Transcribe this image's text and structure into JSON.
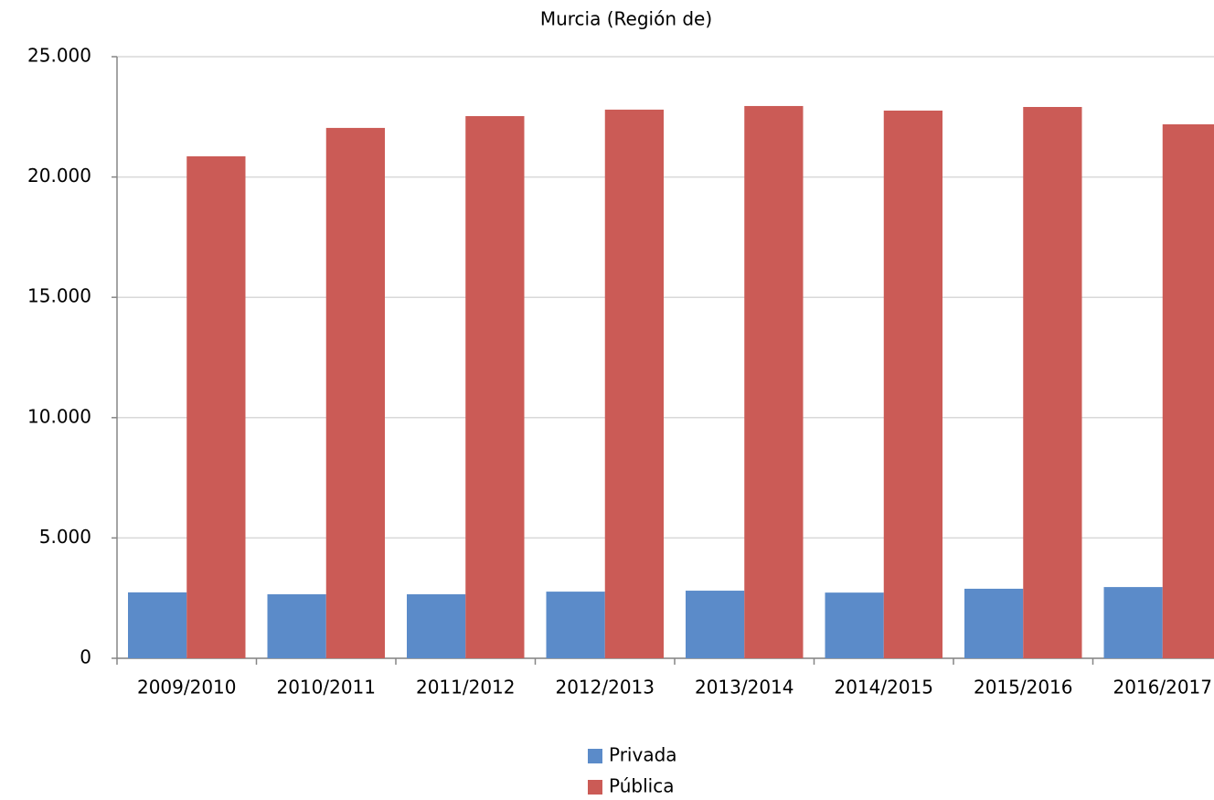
{
  "chart_data": {
    "type": "bar",
    "title": "Murcia (Región de)",
    "categories": [
      "2009/2010",
      "2010/2011",
      "2011/2012",
      "2012/2013",
      "2013/2014",
      "2014/2015",
      "2015/2016",
      "2016/2017"
    ],
    "series": [
      {
        "name": "Privada",
        "color": "#5b8bc9",
        "values": [
          2740,
          2660,
          2660,
          2770,
          2810,
          2730,
          2890,
          2960
        ]
      },
      {
        "name": "Pública",
        "color": "#cb5b56",
        "values": [
          20860,
          22040,
          22530,
          22800,
          22950,
          22760,
          22910,
          22190
        ]
      }
    ],
    "ylim": [
      0,
      25000
    ],
    "yticks": [
      0,
      {
        "value": 5000,
        "label": "5.000"
      },
      {
        "value": 10000,
        "label": "10.000"
      },
      {
        "value": 15000,
        "label": "15.000"
      },
      {
        "value": 20000,
        "label": "20.000"
      },
      {
        "value": 25000,
        "label": "25.000"
      }
    ],
    "grid": true
  }
}
